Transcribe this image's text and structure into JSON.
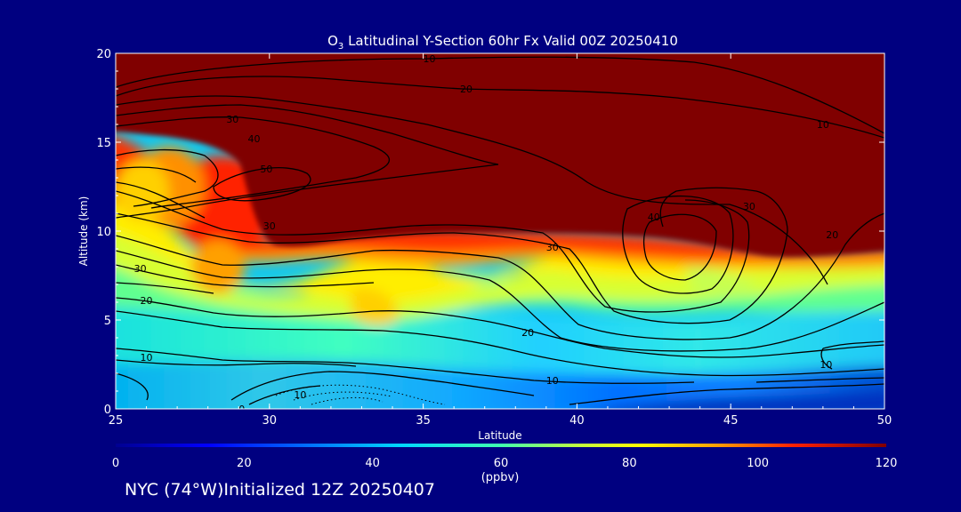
{
  "chart_data": {
    "type": "heatmap",
    "title": {
      "species": "O",
      "subscript": "3",
      "rest": " Latitudinal Y-Section 60hr  Fx Valid 00Z 20250410"
    },
    "xlabel": "Latitude",
    "ylabel": "Altitude (km)",
    "xlim": [
      25,
      50
    ],
    "ylim": [
      0,
      20
    ],
    "xticks": [
      "25",
      "30",
      "35",
      "40",
      "45",
      "50"
    ],
    "yticks": [
      "0",
      "5",
      "10",
      "15",
      "20"
    ],
    "colorbar": {
      "min": 0,
      "max": 120,
      "ticks": [
        "0",
        "20",
        "40",
        "60",
        "80",
        "100",
        "120"
      ],
      "unit": "(ppbv)"
    },
    "contour_labels": [
      {
        "text": "10",
        "lat": 35.2,
        "alt": 19.7
      },
      {
        "text": "20",
        "lat": 36.4,
        "alt": 18.0
      },
      {
        "text": "30",
        "lat": 28.8,
        "alt": 16.3
      },
      {
        "text": "40",
        "lat": 29.5,
        "alt": 15.2
      },
      {
        "text": "50",
        "lat": 29.9,
        "alt": 13.5
      },
      {
        "text": "10",
        "lat": 48.0,
        "alt": 16.0
      },
      {
        "text": "40",
        "lat": 42.5,
        "alt": 10.8
      },
      {
        "text": "30",
        "lat": 39.2,
        "alt": 9.1
      },
      {
        "text": "30",
        "lat": 30.0,
        "alt": 10.3
      },
      {
        "text": "30",
        "lat": 45.6,
        "alt": 11.4
      },
      {
        "text": "20",
        "lat": 48.3,
        "alt": 9.8
      },
      {
        "text": "30",
        "lat": 25.8,
        "alt": 7.9
      },
      {
        "text": "20",
        "lat": 26.0,
        "alt": 6.1
      },
      {
        "text": "20",
        "lat": 38.4,
        "alt": 4.3
      },
      {
        "text": "10",
        "lat": 26.0,
        "alt": 2.9
      },
      {
        "text": "10",
        "lat": 39.2,
        "alt": 1.6
      },
      {
        "text": "10",
        "lat": 48.1,
        "alt": 2.5
      },
      {
        "text": "10",
        "lat": 31.0,
        "alt": 0.8
      },
      {
        "text": "0",
        "lat": 29.1,
        "alt": 0.0
      }
    ]
  },
  "footer": {
    "location_text": "NYC (74°W)Initialized 12Z 20250407"
  }
}
